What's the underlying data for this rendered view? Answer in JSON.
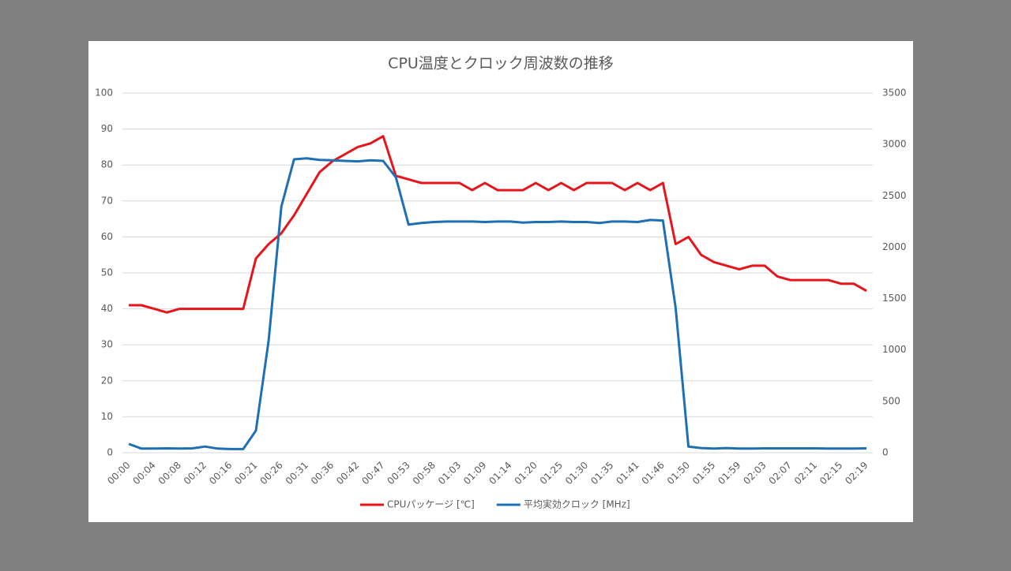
{
  "chart_data": {
    "type": "line",
    "title": "CPU温度とクロック周波数の推移",
    "categories": [
      "00:00",
      null,
      "00:04",
      null,
      "00:08",
      null,
      "00:12",
      null,
      "00:16",
      null,
      "00:21",
      null,
      "00:26",
      null,
      "00:31",
      null,
      "00:36",
      null,
      "00:42",
      null,
      "00:47",
      null,
      "00:53",
      null,
      "00:58",
      null,
      "01:03",
      null,
      "01:09",
      null,
      "01:14",
      null,
      "01:20",
      null,
      "01:25",
      null,
      "01:30",
      null,
      "01:35",
      null,
      "01:41",
      null,
      "01:46",
      null,
      "01:50",
      null,
      "01:55",
      null,
      "01:59",
      null,
      "02:03",
      null,
      "02:07",
      null,
      "02:11",
      null,
      "02:15",
      null,
      "02:19"
    ],
    "series": [
      {
        "name": "CPUパッケージ [℃]",
        "color": "#e8141b",
        "values": [
          41,
          41,
          40,
          39,
          40,
          40,
          40,
          40,
          40,
          40,
          54,
          58,
          61,
          66,
          72,
          78,
          81,
          83,
          85,
          86,
          88,
          77,
          76,
          75,
          75,
          75,
          75,
          73,
          75,
          73,
          73,
          73,
          75,
          73,
          75,
          73,
          75,
          75,
          75,
          73,
          75,
          73,
          75,
          58,
          60,
          55,
          53,
          52,
          51,
          52,
          52,
          49,
          48,
          48,
          48,
          48,
          47,
          47,
          45
        ]
      },
      {
        "name": "平均実効クロック [MHz]",
        "color": "#1f6fb4",
        "axis": "y2",
        "values": [
          85,
          40,
          40,
          42,
          40,
          42,
          60,
          40,
          35,
          35,
          215,
          1090,
          2395,
          2855,
          2865,
          2850,
          2845,
          2840,
          2835,
          2845,
          2840,
          2680,
          2220,
          2235,
          2245,
          2250,
          2250,
          2250,
          2245,
          2250,
          2250,
          2240,
          2245,
          2245,
          2250,
          2245,
          2245,
          2235,
          2250,
          2250,
          2245,
          2265,
          2260,
          1410,
          60,
          45,
          40,
          45,
          40,
          40,
          42,
          42,
          42,
          42,
          42,
          40,
          40,
          40,
          42
        ]
      }
    ],
    "ylim": [
      0,
      100
    ],
    "yticks": [
      0,
      10,
      20,
      30,
      40,
      50,
      60,
      70,
      80,
      90,
      100
    ],
    "y2lim": [
      0,
      3500
    ],
    "y2ticks": [
      0,
      500,
      1000,
      1500,
      2000,
      2500,
      3000,
      3500
    ],
    "grid": true,
    "legend": "bottom"
  }
}
